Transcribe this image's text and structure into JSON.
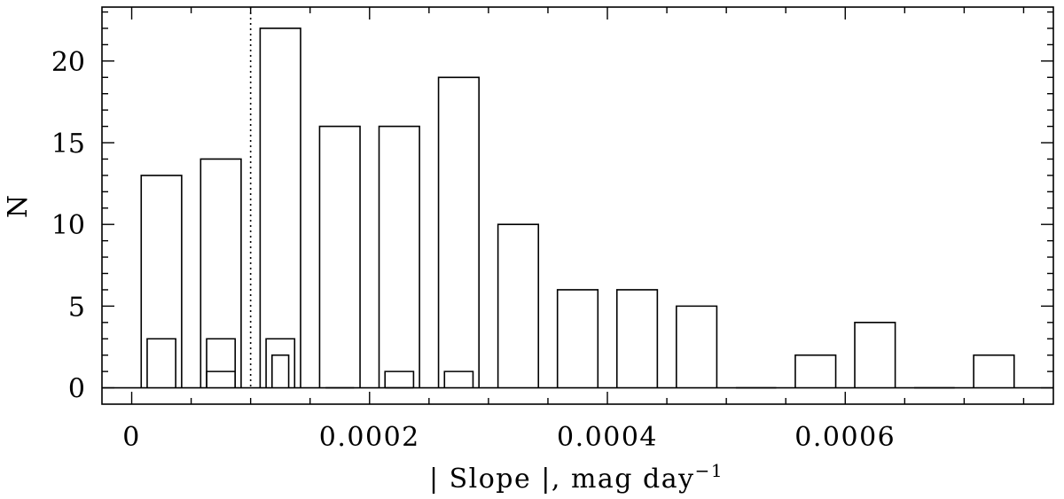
{
  "chart_data": {
    "type": "bar",
    "xlabel_main": "| Slope |, mag day",
    "xlabel_sup": "−1",
    "ylabel": "N",
    "xlim": [
      -2.5e-05,
      0.000775
    ],
    "ylim": [
      -1,
      23.3
    ],
    "x_ticks": [
      0,
      0.0002,
      0.0004,
      0.0006
    ],
    "x_tick_labels": [
      "0",
      "0.0002",
      "0.0004",
      "0.0006"
    ],
    "y_ticks": [
      0,
      5,
      10,
      15,
      20
    ],
    "y_tick_labels": [
      "0",
      "5",
      "10",
      "15",
      "20"
    ],
    "reference_line_x": 0.0001,
    "series": [
      {
        "bins": [
          {
            "x0": 8e-06,
            "x1": 4.2e-05,
            "value": 13
          },
          {
            "x0": 5.8e-05,
            "x1": 9.2e-05,
            "value": 14
          },
          {
            "x0": 0.000108,
            "x1": 0.000142,
            "value": 22
          },
          {
            "x0": 0.000158,
            "x1": 0.000192,
            "value": 16
          },
          {
            "x0": 0.000208,
            "x1": 0.000242,
            "value": 16
          },
          {
            "x0": 0.000258,
            "x1": 0.000292,
            "value": 19
          },
          {
            "x0": 0.000308,
            "x1": 0.000342,
            "value": 10
          },
          {
            "x0": 0.000358,
            "x1": 0.000392,
            "value": 6
          },
          {
            "x0": 0.000408,
            "x1": 0.000442,
            "value": 6
          },
          {
            "x0": 0.000458,
            "x1": 0.000492,
            "value": 5
          },
          {
            "x0": 0.000508,
            "x1": 0.000542,
            "value": 0
          },
          {
            "x0": 0.000558,
            "x1": 0.000592,
            "value": 2
          },
          {
            "x0": 0.000608,
            "x1": 0.000642,
            "value": 4
          },
          {
            "x0": 0.000658,
            "x1": 0.000692,
            "value": 0
          },
          {
            "x0": 0.000708,
            "x1": 0.000742,
            "value": 2
          }
        ]
      },
      {
        "bins": [
          {
            "x0": 1.3e-05,
            "x1": 3.7e-05,
            "value": 3
          },
          {
            "x0": 6.3e-05,
            "x1": 8.7e-05,
            "value": 3
          },
          {
            "x0": 0.000113,
            "x1": 0.000137,
            "value": 3
          },
          {
            "x0": 0.000163,
            "x1": 0.000187,
            "value": 0
          },
          {
            "x0": 0.000213,
            "x1": 0.000237,
            "value": 0
          },
          {
            "x0": 0.000263,
            "x1": 0.000287,
            "value": 1
          }
        ]
      },
      {
        "bins": [
          {
            "x0": 6.3e-05,
            "x1": 8.7e-05,
            "value": 1
          },
          {
            "x0": 0.000118,
            "x1": 0.000132,
            "value": 2
          },
          {
            "x0": 0.000213,
            "x1": 0.000237,
            "value": 1
          }
        ]
      }
    ],
    "grid": false,
    "legend": "none"
  }
}
